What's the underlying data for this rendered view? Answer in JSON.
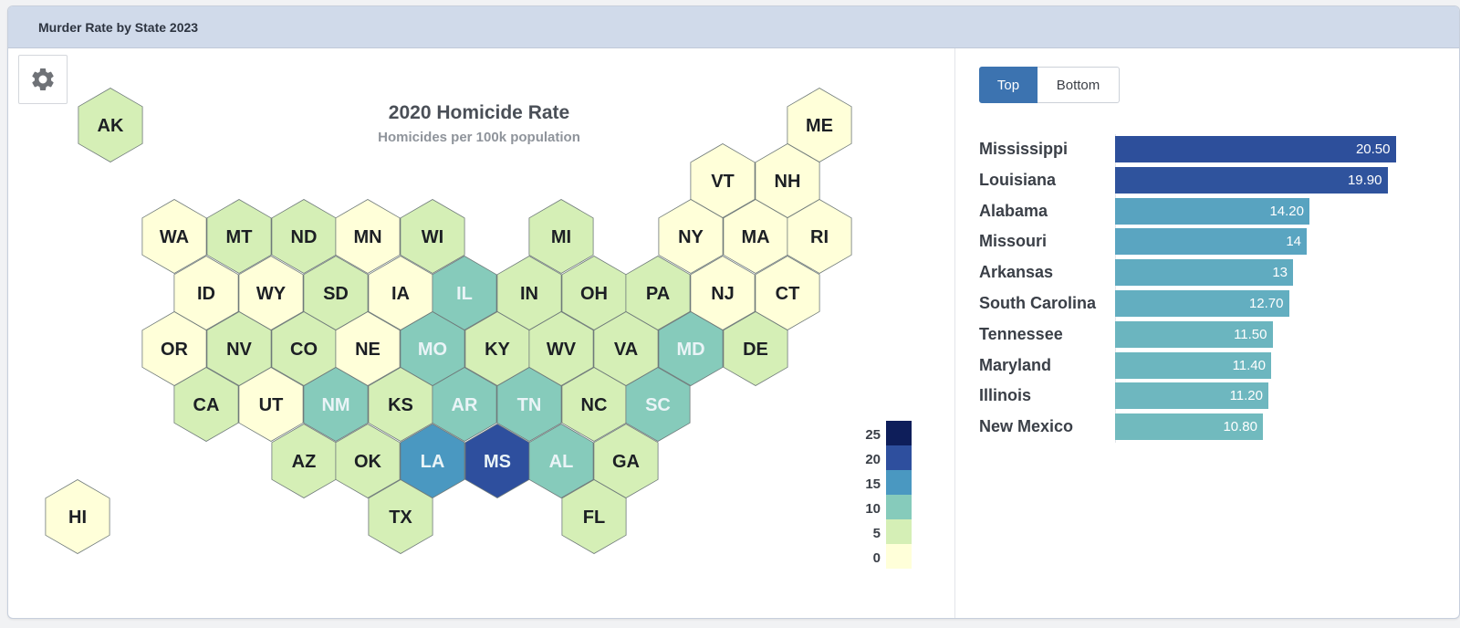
{
  "panel": {
    "title": "Murder Rate by State 2023"
  },
  "map": {
    "title": "2020 Homicide Rate",
    "subtitle": "Homicides per 100k population",
    "scale_max": 25,
    "colors": [
      "#ffffd9",
      "#d5efb6",
      "#86cbbb",
      "#4a98c1",
      "#2e4f9e",
      "#0e1e5a"
    ],
    "legend_ticks": [
      "25",
      "20",
      "15",
      "10",
      "5",
      "0"
    ],
    "states": [
      {
        "abbr": "AK",
        "v": 7.5
      },
      {
        "abbr": "ME",
        "v": 1.6
      },
      {
        "abbr": "VT",
        "v": 2.5
      },
      {
        "abbr": "NH",
        "v": 1.5
      },
      {
        "abbr": "WA",
        "v": 3.6
      },
      {
        "abbr": "MT",
        "v": 6.6
      },
      {
        "abbr": "ND",
        "v": 5.0
      },
      {
        "abbr": "MN",
        "v": 3.9
      },
      {
        "abbr": "WI",
        "v": 5.6
      },
      {
        "abbr": "MI",
        "v": 7.5
      },
      {
        "abbr": "NY",
        "v": 4.2
      },
      {
        "abbr": "MA",
        "v": 2.4
      },
      {
        "abbr": "RI",
        "v": 2.9
      },
      {
        "abbr": "ID",
        "v": 2.1
      },
      {
        "abbr": "WY",
        "v": 3.9
      },
      {
        "abbr": "SD",
        "v": 6.1
      },
      {
        "abbr": "IA",
        "v": 3.6
      },
      {
        "abbr": "IL",
        "v": 11.2
      },
      {
        "abbr": "IN",
        "v": 9.8
      },
      {
        "abbr": "OH",
        "v": 8.2
      },
      {
        "abbr": "PA",
        "v": 7.4
      },
      {
        "abbr": "NJ",
        "v": 3.6
      },
      {
        "abbr": "CT",
        "v": 3.8
      },
      {
        "abbr": "OR",
        "v": 3.5
      },
      {
        "abbr": "NV",
        "v": 7.0
      },
      {
        "abbr": "CO",
        "v": 5.5
      },
      {
        "abbr": "NE",
        "v": 3.7
      },
      {
        "abbr": "MO",
        "v": 14
      },
      {
        "abbr": "KY",
        "v": 8.6
      },
      {
        "abbr": "WV",
        "v": 6.3
      },
      {
        "abbr": "VA",
        "v": 6.1
      },
      {
        "abbr": "MD",
        "v": 11.4
      },
      {
        "abbr": "DE",
        "v": 9.5
      },
      {
        "abbr": "CA",
        "v": 5.6
      },
      {
        "abbr": "UT",
        "v": 2.9
      },
      {
        "abbr": "NM",
        "v": 10.8
      },
      {
        "abbr": "KS",
        "v": 6.4
      },
      {
        "abbr": "AR",
        "v": 13
      },
      {
        "abbr": "TN",
        "v": 11.5
      },
      {
        "abbr": "NC",
        "v": 7.8
      },
      {
        "abbr": "SC",
        "v": 12.7
      },
      {
        "abbr": "AZ",
        "v": 7.5
      },
      {
        "abbr": "OK",
        "v": 8.0
      },
      {
        "abbr": "LA",
        "v": 19.9
      },
      {
        "abbr": "MS",
        "v": 20.5
      },
      {
        "abbr": "AL",
        "v": 14.2
      },
      {
        "abbr": "GA",
        "v": 9.8
      },
      {
        "abbr": "HI",
        "v": 2.4
      },
      {
        "abbr": "TX",
        "v": 7.4
      },
      {
        "abbr": "FL",
        "v": 7.2
      }
    ]
  },
  "ranking": {
    "buttons": {
      "top": "Top",
      "bottom": "Bottom"
    },
    "max_value": 22,
    "items": [
      {
        "state": "Mississippi",
        "value": 20.5,
        "label": "20.50",
        "color": "#2d4f9b"
      },
      {
        "state": "Louisiana",
        "value": 19.9,
        "label": "19.90",
        "color": "#2f539d"
      },
      {
        "state": "Alabama",
        "value": 14.2,
        "label": "14.20",
        "color": "#58a3c0"
      },
      {
        "state": "Missouri",
        "value": 14,
        "label": "14",
        "color": "#5aa5c1"
      },
      {
        "state": "Arkansas",
        "value": 13,
        "label": "13",
        "color": "#60abc0"
      },
      {
        "state": "South Carolina",
        "value": 12.7,
        "label": "12.70",
        "color": "#63aec0"
      },
      {
        "state": "Tennessee",
        "value": 11.5,
        "label": "11.50",
        "color": "#6bb5bf"
      },
      {
        "state": "Maryland",
        "value": 11.4,
        "label": "11.40",
        "color": "#6cb6bf"
      },
      {
        "state": "Illinois",
        "value": 11.2,
        "label": "11.20",
        "color": "#6eb7bf"
      },
      {
        "state": "New Mexico",
        "value": 10.8,
        "label": "10.80",
        "color": "#71babe"
      }
    ]
  }
}
